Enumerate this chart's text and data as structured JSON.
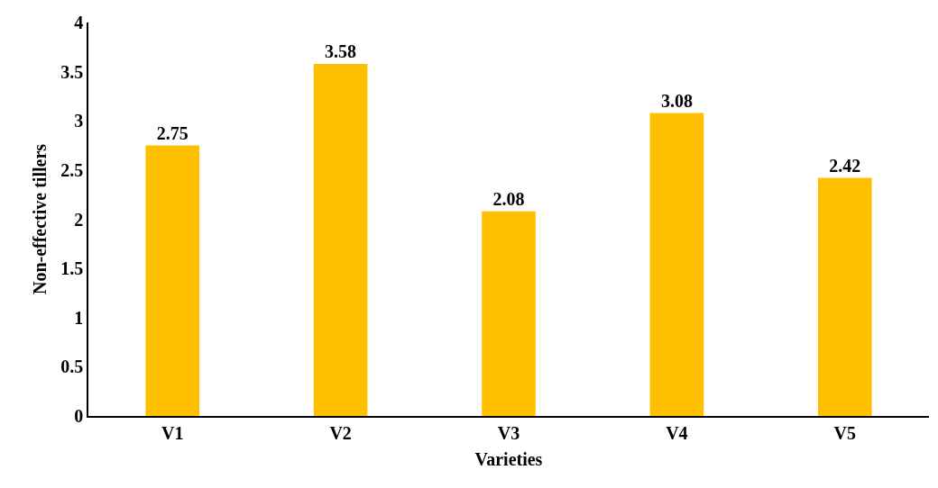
{
  "chart_data": {
    "type": "bar",
    "xlabel": "Varieties",
    "ylabel": "Non-effective tillers",
    "categories": [
      "V1",
      "V2",
      "V3",
      "V4",
      "V5"
    ],
    "values": [
      2.75,
      3.58,
      2.08,
      3.08,
      2.42
    ],
    "color": "#ffc000",
    "ylim": [
      0,
      4
    ],
    "yticks": [
      0,
      0.5,
      1,
      1.5,
      2,
      2.5,
      3,
      3.5,
      4
    ],
    "grid": false,
    "data_labels": true
  }
}
